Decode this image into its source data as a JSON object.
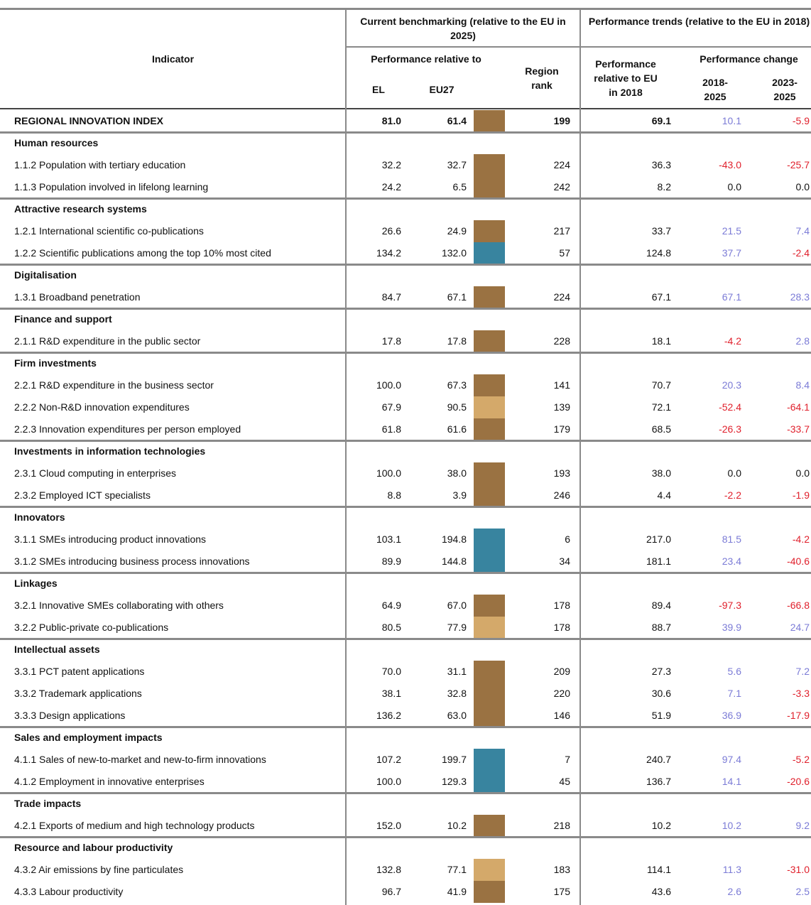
{
  "table": {
    "headers": {
      "indicator": "Indicator",
      "current": "Current benchmarking (relative to the EU in 2025)",
      "perf_rel": "Performance relative to",
      "el": "EL",
      "eu27": "EU27",
      "rank": "Region rank",
      "trends": "Performance trends (relative to the EU in 2018)",
      "perf2018": "Performance relative to EU in 2018",
      "change": "Performance change",
      "c1": "2018-2025",
      "c2": "2023-2025"
    },
    "index": {
      "label": "REGIONAL INNOVATION INDEX",
      "el": "81.0",
      "eu27": "61.4",
      "color": "#9a7242",
      "rank": 199,
      "perf2018": "69.1",
      "c1": "10.1",
      "c2": "-5.9"
    },
    "groups": [
      {
        "name": "Human resources",
        "rows": [
          {
            "label": "1.1.2 Population with tertiary education",
            "el": "32.2",
            "eu27": "32.7",
            "color": "#9a7242",
            "rank": 224,
            "perf2018": "36.3",
            "c1": "-43.0",
            "c2": "-25.7"
          },
          {
            "label": "1.1.3 Population involved in lifelong learning",
            "el": "24.2",
            "eu27": "6.5",
            "color": "#9a7242",
            "rank": 242,
            "perf2018": "8.2",
            "c1": "0.0",
            "c2": "0.0"
          }
        ]
      },
      {
        "name": "Attractive research systems",
        "rows": [
          {
            "label": "1.2.1 International scientific co-publications",
            "el": "26.6",
            "eu27": "24.9",
            "color": "#9a7242",
            "rank": 217,
            "perf2018": "33.7",
            "c1": "21.5",
            "c2": "7.4"
          },
          {
            "label": "1.2.2 Scientific publications among the top 10% most cited",
            "el": "134.2",
            "eu27": "132.0",
            "color": "#38849f",
            "rank": 57,
            "perf2018": "124.8",
            "c1": "37.7",
            "c2": "-2.4"
          }
        ]
      },
      {
        "name": "Digitalisation",
        "rows": [
          {
            "label": "1.3.1 Broadband penetration",
            "el": "84.7",
            "eu27": "67.1",
            "color": "#9a7242",
            "rank": 224,
            "perf2018": "67.1",
            "c1": "67.1",
            "c2": "28.3"
          }
        ]
      },
      {
        "name": "Finance and support",
        "rows": [
          {
            "label": "2.1.1 R&D expenditure in the public sector",
            "el": "17.8",
            "eu27": "17.8",
            "color": "#9a7242",
            "rank": 228,
            "perf2018": "18.1",
            "c1": "-4.2",
            "c2": "2.8"
          }
        ]
      },
      {
        "name": "Firm investments",
        "rows": [
          {
            "label": "2.2.1 R&D expenditure in the business sector",
            "el": "100.0",
            "eu27": "67.3",
            "color": "#9a7242",
            "rank": 141,
            "perf2018": "70.7",
            "c1": "20.3",
            "c2": "8.4"
          },
          {
            "label": "2.2.2 Non-R&D innovation expenditures",
            "el": "67.9",
            "eu27": "90.5",
            "color": "#d4a96a",
            "rank": 139,
            "perf2018": "72.1",
            "c1": "-52.4",
            "c2": "-64.1"
          },
          {
            "label": "2.2.3 Innovation expenditures per person employed",
            "el": "61.8",
            "eu27": "61.6",
            "color": "#9a7242",
            "rank": 179,
            "perf2018": "68.5",
            "c1": "-26.3",
            "c2": "-33.7"
          }
        ]
      },
      {
        "name": "Investments in information technologies",
        "rows": [
          {
            "label": "2.3.1 Cloud computing in enterprises",
            "el": "100.0",
            "eu27": "38.0",
            "color": "#9a7242",
            "rank": 193,
            "perf2018": "38.0",
            "c1": "0.0",
            "c2": "0.0"
          },
          {
            "label": "2.3.2 Employed ICT specialists",
            "el": "8.8",
            "eu27": "3.9",
            "color": "#9a7242",
            "rank": 246,
            "perf2018": "4.4",
            "c1": "-2.2",
            "c2": "-1.9"
          }
        ]
      },
      {
        "name": "Innovators",
        "rows": [
          {
            "label": "3.1.1 SMEs introducing product innovations",
            "el": "103.1",
            "eu27": "194.8",
            "color": "#38849f",
            "rank": 6,
            "perf2018": "217.0",
            "c1": "81.5",
            "c2": "-4.2"
          },
          {
            "label": "3.1.2 SMEs introducing business process innovations",
            "el": "89.9",
            "eu27": "144.8",
            "color": "#38849f",
            "rank": 34,
            "perf2018": "181.1",
            "c1": "23.4",
            "c2": "-40.6"
          }
        ]
      },
      {
        "name": "Linkages",
        "rows": [
          {
            "label": "3.2.1 Innovative SMEs collaborating with others",
            "el": "64.9",
            "eu27": "67.0",
            "color": "#9a7242",
            "rank": 178,
            "perf2018": "89.4",
            "c1": "-97.3",
            "c2": "-66.8"
          },
          {
            "label": "3.2.2 Public-private co-publications",
            "el": "80.5",
            "eu27": "77.9",
            "color": "#d4a96a",
            "rank": 178,
            "perf2018": "88.7",
            "c1": "39.9",
            "c2": "24.7"
          }
        ]
      },
      {
        "name": "Intellectual assets",
        "rows": [
          {
            "label": "3.3.1 PCT patent applications",
            "el": "70.0",
            "eu27": "31.1",
            "color": "#9a7242",
            "rank": 209,
            "perf2018": "27.3",
            "c1": "5.6",
            "c2": "7.2"
          },
          {
            "label": "3.3.2 Trademark applications",
            "el": "38.1",
            "eu27": "32.8",
            "color": "#9a7242",
            "rank": 220,
            "perf2018": "30.6",
            "c1": "7.1",
            "c2": "-3.3"
          },
          {
            "label": "3.3.3 Design applications",
            "el": "136.2",
            "eu27": "63.0",
            "color": "#9a7242",
            "rank": 146,
            "perf2018": "51.9",
            "c1": "36.9",
            "c2": "-17.9"
          }
        ]
      },
      {
        "name": "Sales and employment impacts",
        "rows": [
          {
            "label": "4.1.1 Sales of new-to-market and new-to-firm innovations",
            "el": "107.2",
            "eu27": "199.7",
            "color": "#38849f",
            "rank": 7,
            "perf2018": "240.7",
            "c1": "97.4",
            "c2": "-5.2"
          },
          {
            "label": "4.1.2 Employment in innovative enterprises",
            "el": "100.0",
            "eu27": "129.3",
            "color": "#38849f",
            "rank": 45,
            "perf2018": "136.7",
            "c1": "14.1",
            "c2": "-20.6"
          }
        ]
      },
      {
        "name": "Trade impacts",
        "rows": [
          {
            "label": "4.2.1 Exports of medium and high technology products",
            "el": "152.0",
            "eu27": "10.2",
            "color": "#9a7242",
            "rank": 218,
            "perf2018": "10.2",
            "c1": "10.2",
            "c2": "9.2"
          }
        ]
      },
      {
        "name": "Resource and labour productivity",
        "rows": [
          {
            "label": "4.3.2 Air emissions by fine particulates",
            "el": "132.8",
            "eu27": "77.1",
            "color": "#d4a96a",
            "rank": 183,
            "perf2018": "114.1",
            "c1": "11.3",
            "c2": "-31.0"
          },
          {
            "label": "4.3.3 Labour productivity",
            "el": "96.7",
            "eu27": "41.9",
            "color": "#9a7242",
            "rank": 175,
            "perf2018": "43.6",
            "c1": "2.6",
            "c2": "2.5"
          }
        ]
      }
    ]
  }
}
